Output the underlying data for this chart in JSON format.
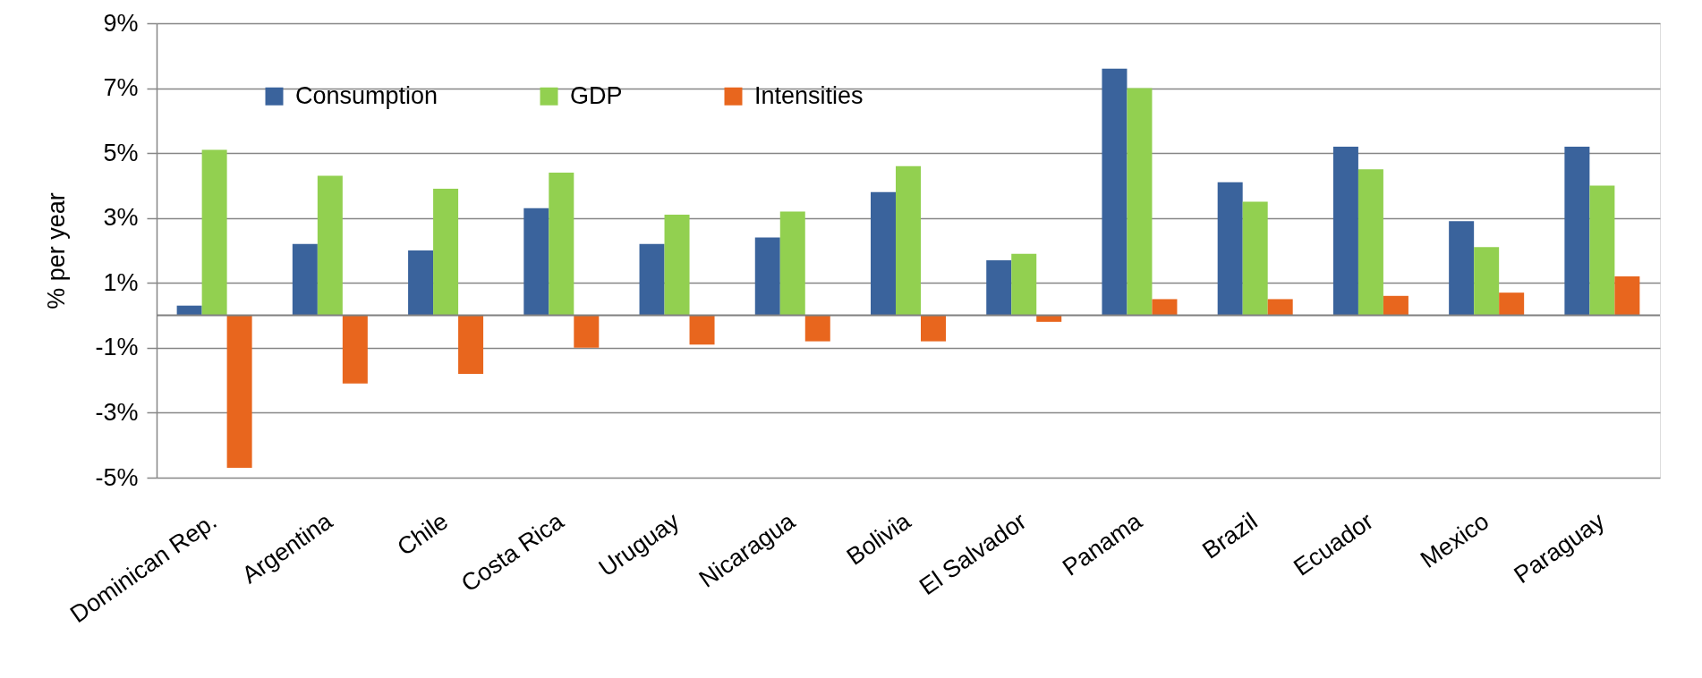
{
  "chart_data": {
    "type": "bar",
    "ylabel": "% per year",
    "categories": [
      "Dominican Rep.",
      "Argentina",
      "Chile",
      "Costa Rica",
      "Uruguay",
      "Nicaragua",
      "Bolivia",
      "El Salvador",
      "Panama",
      "Brazil",
      "Ecuador",
      "Mexico",
      "Paraguay"
    ],
    "series": [
      {
        "name": "Consumption",
        "color": "#3a639c",
        "values": [
          0.3,
          2.2,
          2.0,
          3.3,
          2.2,
          2.4,
          3.8,
          1.7,
          7.6,
          4.1,
          5.2,
          2.9,
          5.2
        ]
      },
      {
        "name": "GDP",
        "color": "#92d050",
        "values": [
          5.1,
          4.3,
          3.9,
          4.4,
          3.1,
          3.2,
          4.6,
          1.9,
          7.0,
          3.5,
          4.5,
          2.1,
          4.0
        ]
      },
      {
        "name": "Intensities",
        "color": "#e8661e",
        "values": [
          -4.7,
          -2.1,
          -1.8,
          -1.0,
          -0.9,
          -0.8,
          -0.8,
          -0.2,
          0.5,
          0.5,
          0.6,
          0.7,
          1.2
        ]
      }
    ],
    "ylim": [
      -5,
      9
    ],
    "yticks": [
      {
        "value": 9,
        "label": "9%"
      },
      {
        "value": 7,
        "label": "7%"
      },
      {
        "value": 5,
        "label": "5%"
      },
      {
        "value": 3,
        "label": "3%"
      },
      {
        "value": 1,
        "label": "1%"
      },
      {
        "value": -1,
        "label": "-1%"
      },
      {
        "value": -3,
        "label": "-3%"
      },
      {
        "value": -5,
        "label": "-5%"
      }
    ],
    "ref_lines": [
      {
        "axis": "y",
        "value": 0,
        "color": "#808080"
      }
    ],
    "grid": "y",
    "legend": "top left"
  }
}
